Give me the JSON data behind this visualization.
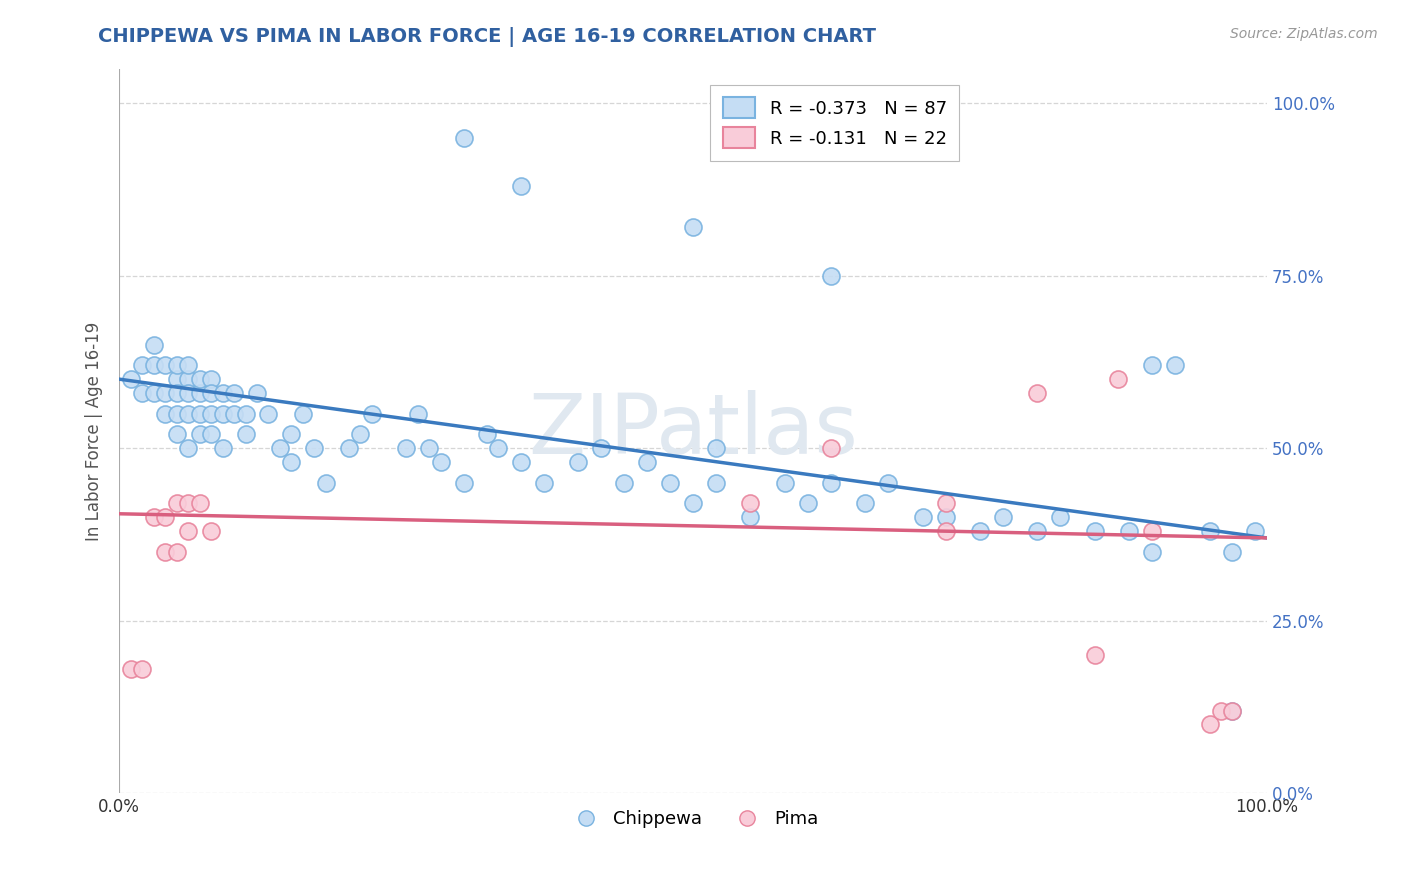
{
  "title": "CHIPPEWA VS PIMA IN LABOR FORCE | AGE 16-19 CORRELATION CHART",
  "source_text": "Source: ZipAtlas.com",
  "ylabel": "In Labor Force | Age 16-19",
  "chippewa_R": -0.373,
  "chippewa_N": 87,
  "pima_R": -0.131,
  "pima_N": 22,
  "chippewa_color": "#c5ddf4",
  "chippewa_edge_color": "#7ab3e0",
  "pima_color": "#f9ccd9",
  "pima_edge_color": "#e8849c",
  "chippewa_line_color": "#3a7abf",
  "pima_line_color": "#d95f7f",
  "background_color": "#ffffff",
  "grid_color": "#cccccc",
  "title_color": "#3060a0",
  "right_tick_color": "#4472c4",
  "watermark_color": "#e0e8f0",
  "xlim": [
    0.0,
    1.0
  ],
  "ylim": [
    0.0,
    1.05
  ],
  "yticks": [
    0.0,
    0.25,
    0.5,
    0.75,
    1.0
  ],
  "ytick_labels": [
    "0.0%",
    "25.0%",
    "50.0%",
    "75.0%",
    "100.0%"
  ],
  "xticks": [
    0.0,
    0.25,
    0.5,
    0.75,
    1.0
  ],
  "xtick_labels": [
    "0.0%",
    "",
    "",
    "",
    "100.0%"
  ],
  "chippewa_x": [
    0.01,
    0.02,
    0.02,
    0.03,
    0.03,
    0.03,
    0.04,
    0.04,
    0.04,
    0.05,
    0.05,
    0.05,
    0.05,
    0.05,
    0.06,
    0.06,
    0.06,
    0.06,
    0.06,
    0.07,
    0.07,
    0.07,
    0.07,
    0.08,
    0.08,
    0.08,
    0.08,
    0.09,
    0.09,
    0.09,
    0.1,
    0.1,
    0.11,
    0.11,
    0.12,
    0.13,
    0.14,
    0.15,
    0.15,
    0.16,
    0.17,
    0.18,
    0.2,
    0.21,
    0.22,
    0.25,
    0.26,
    0.27,
    0.28,
    0.3,
    0.32,
    0.33,
    0.35,
    0.37,
    0.4,
    0.42,
    0.44,
    0.46,
    0.48,
    0.5,
    0.52,
    0.55,
    0.58,
    0.6,
    0.62,
    0.65,
    0.67,
    0.7,
    0.72,
    0.75,
    0.77,
    0.8,
    0.82,
    0.85,
    0.88,
    0.9,
    0.92,
    0.95,
    0.97,
    0.99,
    0.3,
    0.35,
    0.5,
    0.52,
    0.62,
    0.9,
    0.97
  ],
  "chippewa_y": [
    0.6,
    0.58,
    0.62,
    0.58,
    0.62,
    0.65,
    0.58,
    0.62,
    0.55,
    0.6,
    0.62,
    0.55,
    0.58,
    0.52,
    0.6,
    0.62,
    0.55,
    0.58,
    0.5,
    0.58,
    0.6,
    0.55,
    0.52,
    0.6,
    0.58,
    0.52,
    0.55,
    0.58,
    0.55,
    0.5,
    0.58,
    0.55,
    0.55,
    0.52,
    0.58,
    0.55,
    0.5,
    0.52,
    0.48,
    0.55,
    0.5,
    0.45,
    0.5,
    0.52,
    0.55,
    0.5,
    0.55,
    0.5,
    0.48,
    0.45,
    0.52,
    0.5,
    0.48,
    0.45,
    0.48,
    0.5,
    0.45,
    0.48,
    0.45,
    0.42,
    0.45,
    0.4,
    0.45,
    0.42,
    0.45,
    0.42,
    0.45,
    0.4,
    0.4,
    0.38,
    0.4,
    0.38,
    0.4,
    0.38,
    0.38,
    0.35,
    0.62,
    0.38,
    0.35,
    0.38,
    0.95,
    0.88,
    0.82,
    0.5,
    0.75,
    0.62,
    0.12
  ],
  "pima_x": [
    0.01,
    0.02,
    0.03,
    0.04,
    0.04,
    0.05,
    0.05,
    0.06,
    0.06,
    0.07,
    0.08,
    0.55,
    0.62,
    0.72,
    0.72,
    0.8,
    0.85,
    0.87,
    0.9,
    0.95,
    0.96,
    0.97
  ],
  "pima_y": [
    0.18,
    0.18,
    0.4,
    0.35,
    0.4,
    0.35,
    0.42,
    0.38,
    0.42,
    0.42,
    0.38,
    0.42,
    0.5,
    0.42,
    0.38,
    0.58,
    0.2,
    0.6,
    0.38,
    0.1,
    0.12,
    0.12
  ]
}
